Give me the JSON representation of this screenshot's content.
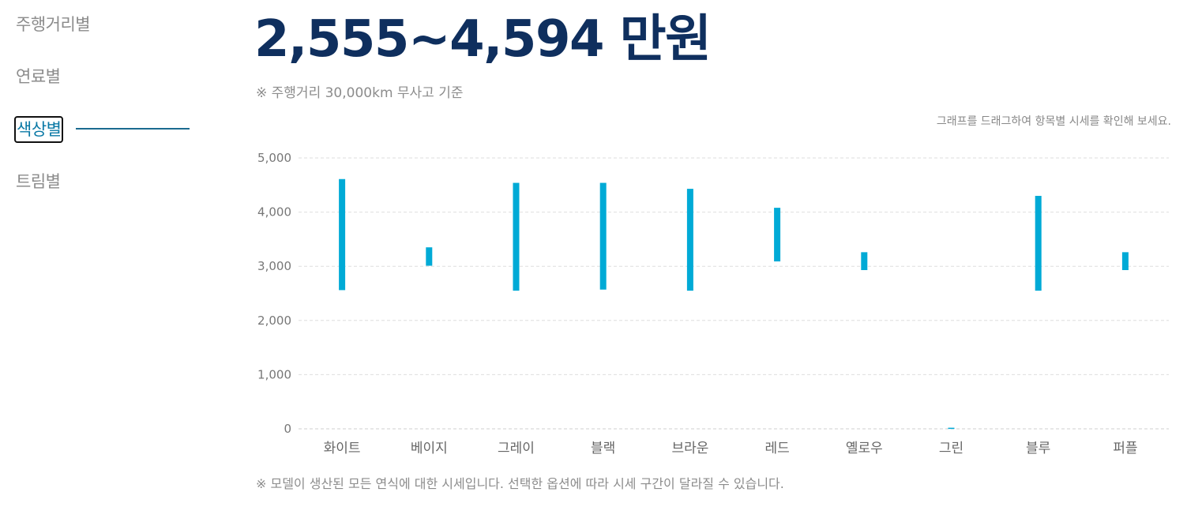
{
  "sidebar": {
    "items": [
      {
        "label": "주행거리별",
        "active": false
      },
      {
        "label": "연료별",
        "active": false
      },
      {
        "label": "색상별",
        "active": true
      },
      {
        "label": "트림별",
        "active": false
      }
    ]
  },
  "headline": {
    "price_range": "2,555~4,594 만원"
  },
  "notes": {
    "basis": "※ 주행거리 30,000km 무사고 기준",
    "drag_hint": "그래프를 드래그하여 항목별 시세를 확인해 보세요.",
    "disclaimer": "※ 모델이 생산된 모든 연식에 대한 시세입니다. 선택한 옵션에 따라 시세 구간이 달라질 수 있습니다."
  },
  "colors": {
    "bar": "#00aad6",
    "title": "#0f2f5e",
    "active_tab": "#0a79a6"
  },
  "chart_data": {
    "type": "bar",
    "subtype": "floating-range",
    "categories": [
      "화이트",
      "베이지",
      "그레이",
      "블랙",
      "브라운",
      "레드",
      "옐로우",
      "그린",
      "블루",
      "퍼플"
    ],
    "series": [
      {
        "low": [
          2560,
          3010,
          2550,
          2570,
          2550,
          3090,
          2930,
          0,
          2550,
          2930
        ],
        "high": [
          4610,
          3350,
          4540,
          4540,
          4430,
          4080,
          3260,
          20,
          4300,
          3260
        ]
      }
    ],
    "ylim": [
      0,
      5000
    ],
    "yticks": [
      0,
      1000,
      2000,
      3000,
      4000,
      5000
    ],
    "ytick_labels": [
      "0",
      "1,000",
      "2,000",
      "3,000",
      "4,000",
      "5,000"
    ],
    "grid": true
  }
}
